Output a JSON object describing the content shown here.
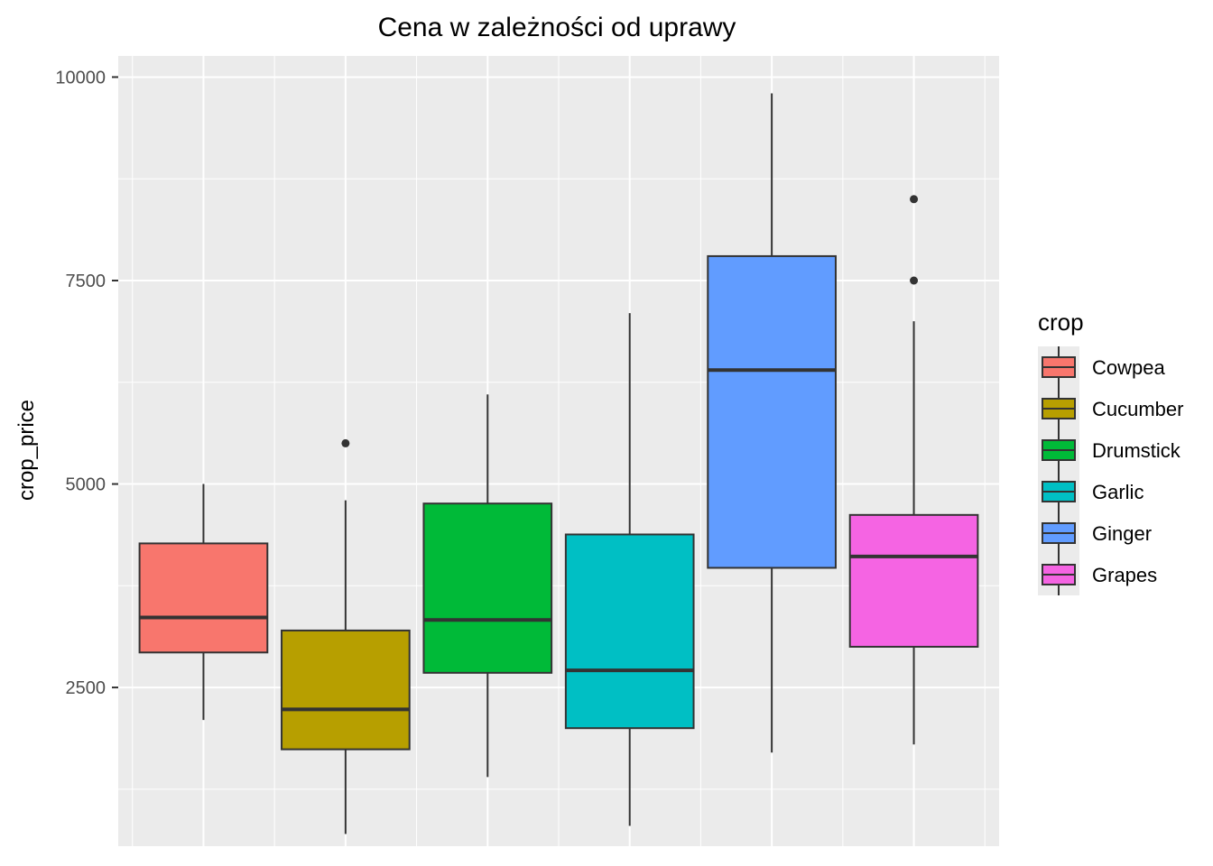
{
  "chart_data": {
    "type": "boxplot",
    "title": "Cena w zależności od uprawy",
    "xlabel": "",
    "ylabel": "crop_price",
    "ylim": [
      550,
      10260
    ],
    "yticks": [
      2500,
      5000,
      7500,
      10000
    ],
    "grid": true,
    "legend": {
      "title": "crop",
      "position": "right"
    },
    "series": [
      {
        "name": "Cowpea",
        "color": "#F8766D",
        "whisker_low": 2100,
        "q1": 2930,
        "median": 3360,
        "q3": 4270,
        "whisker_high": 5000,
        "outliers": []
      },
      {
        "name": "Cucumber",
        "color": "#B79F00",
        "whisker_low": 700,
        "q1": 1740,
        "median": 2230,
        "q3": 3200,
        "whisker_high": 4800,
        "outliers": [
          5500
        ]
      },
      {
        "name": "Drumstick",
        "color": "#00BA38",
        "whisker_low": 1400,
        "q1": 2680,
        "median": 3330,
        "q3": 4760,
        "whisker_high": 6100,
        "outliers": []
      },
      {
        "name": "Garlic",
        "color": "#00BFC4",
        "whisker_low": 800,
        "q1": 2000,
        "median": 2710,
        "q3": 4380,
        "whisker_high": 7100,
        "outliers": []
      },
      {
        "name": "Ginger",
        "color": "#619CFF",
        "whisker_low": 1700,
        "q1": 3970,
        "median": 6400,
        "q3": 7800,
        "whisker_high": 9800,
        "outliers": []
      },
      {
        "name": "Grapes",
        "color": "#F564E3",
        "whisker_low": 1800,
        "q1": 3000,
        "median": 4110,
        "q3": 4620,
        "whisker_high": 7000,
        "outliers": [
          7500,
          8500
        ]
      }
    ]
  }
}
